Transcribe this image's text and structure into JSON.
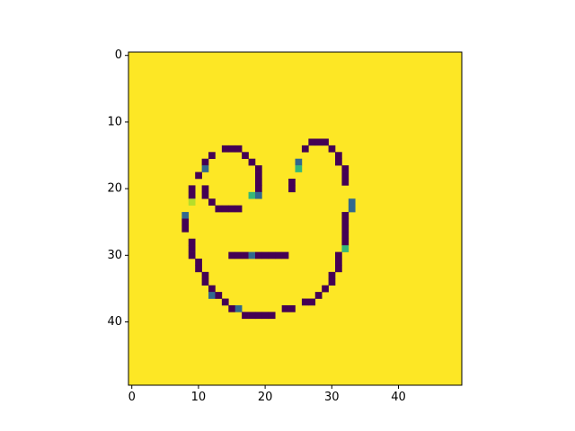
{
  "chart_data": {
    "type": "heatmap",
    "title": "",
    "xlabel": "",
    "ylabel": "",
    "rows": 50,
    "cols": 50,
    "xlim": [
      -0.5,
      49.5
    ],
    "ylim": [
      49.5,
      -0.5
    ],
    "x_ticks": [
      0,
      10,
      20,
      30,
      40
    ],
    "y_ticks": [
      0,
      10,
      20,
      30,
      40
    ],
    "x_tick_labels": [
      "0",
      "10",
      "20",
      "30",
      "40"
    ],
    "y_tick_labels": [
      "0",
      "10",
      "20",
      "30",
      "40"
    ],
    "grid": false,
    "colormap": "viridis",
    "background_value": 1.0,
    "colors": {
      "background": "#fde725",
      "dark": "#440154",
      "teal": "#31688e",
      "green": "#35b779",
      "lime": "#b5de2b"
    },
    "cells": [
      [
        14,
        14,
        0
      ],
      [
        14,
        15,
        0
      ],
      [
        14,
        16,
        0
      ],
      [
        15,
        12,
        0
      ],
      [
        15,
        17,
        0
      ],
      [
        16,
        11,
        0
      ],
      [
        16,
        18,
        0
      ],
      [
        17,
        11,
        0.35
      ],
      [
        17,
        19,
        0
      ],
      [
        18,
        10,
        0
      ],
      [
        18,
        19,
        0
      ],
      [
        19,
        19,
        0
      ],
      [
        20,
        9,
        0
      ],
      [
        20,
        11,
        0
      ],
      [
        20,
        19,
        0
      ],
      [
        21,
        9,
        0
      ],
      [
        21,
        11,
        0
      ],
      [
        21,
        18,
        0.65
      ],
      [
        21,
        19,
        0.35
      ],
      [
        22,
        9,
        0.85
      ],
      [
        22,
        12,
        0
      ],
      [
        23,
        13,
        0
      ],
      [
        23,
        14,
        0
      ],
      [
        23,
        15,
        0
      ],
      [
        23,
        16,
        0
      ],
      [
        24,
        8,
        0.35
      ],
      [
        25,
        8,
        0
      ],
      [
        26,
        8,
        0
      ],
      [
        28,
        9,
        0
      ],
      [
        29,
        9,
        0
      ],
      [
        30,
        9,
        0
      ],
      [
        30,
        15,
        0
      ],
      [
        30,
        16,
        0
      ],
      [
        30,
        17,
        0
      ],
      [
        30,
        18,
        0.35
      ],
      [
        30,
        19,
        0
      ],
      [
        30,
        20,
        0
      ],
      [
        30,
        21,
        0
      ],
      [
        30,
        22,
        0
      ],
      [
        30,
        23,
        0
      ],
      [
        31,
        10,
        0
      ],
      [
        32,
        10,
        0
      ],
      [
        33,
        11,
        0
      ],
      [
        34,
        11,
        0
      ],
      [
        35,
        12,
        0
      ],
      [
        36,
        12,
        0.35
      ],
      [
        36,
        13,
        0
      ],
      [
        37,
        14,
        0
      ],
      [
        38,
        15,
        0
      ],
      [
        38,
        16,
        0.35
      ],
      [
        39,
        17,
        0
      ],
      [
        39,
        18,
        0
      ],
      [
        39,
        19,
        0
      ],
      [
        39,
        20,
        0
      ],
      [
        39,
        21,
        0
      ],
      [
        13,
        27,
        0
      ],
      [
        13,
        28,
        0
      ],
      [
        13,
        29,
        0
      ],
      [
        14,
        26,
        0
      ],
      [
        14,
        30,
        0
      ],
      [
        15,
        31,
        0
      ],
      [
        16,
        25,
        0.35
      ],
      [
        16,
        31,
        0
      ],
      [
        17,
        25,
        0.65
      ],
      [
        17,
        32,
        0
      ],
      [
        18,
        32,
        0
      ],
      [
        19,
        24,
        0
      ],
      [
        19,
        32,
        0
      ],
      [
        20,
        24,
        0
      ],
      [
        22,
        33,
        0.35
      ],
      [
        23,
        33,
        0.35
      ],
      [
        24,
        32,
        0
      ],
      [
        25,
        32,
        0
      ],
      [
        26,
        32,
        0
      ],
      [
        27,
        32,
        0
      ],
      [
        28,
        32,
        0
      ],
      [
        29,
        32,
        0.65
      ],
      [
        30,
        31,
        0
      ],
      [
        31,
        31,
        0
      ],
      [
        32,
        31,
        0
      ],
      [
        33,
        30,
        0
      ],
      [
        34,
        30,
        0
      ],
      [
        35,
        29,
        0
      ],
      [
        36,
        28,
        0
      ],
      [
        37,
        26,
        0
      ],
      [
        37,
        27,
        0
      ],
      [
        38,
        23,
        0
      ],
      [
        38,
        24,
        0
      ]
    ]
  }
}
